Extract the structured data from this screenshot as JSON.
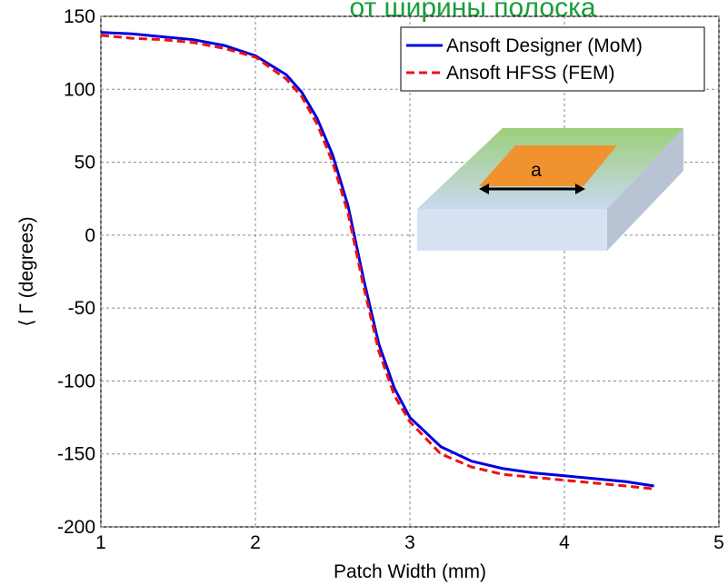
{
  "chart_data": {
    "type": "line",
    "title": "от ширины полоска",
    "xlabel": "Patch Width (mm)",
    "ylabel": "⟨ Γ (degrees)",
    "x": [
      1,
      1.2,
      1.4,
      1.6,
      1.8,
      2.0,
      2.2,
      2.3,
      2.4,
      2.5,
      2.6,
      2.7,
      2.8,
      2.9,
      3.0,
      3.2,
      3.4,
      3.6,
      3.8,
      4.0,
      4.2,
      4.4,
      4.58
    ],
    "series": [
      {
        "name": "Ansoft Designer (MoM)",
        "color": "#0000dd",
        "dash": false,
        "values": [
          139,
          138,
          136,
          134,
          130,
          123,
          110,
          98,
          80,
          55,
          20,
          -30,
          -75,
          -105,
          -125,
          -145,
          -155,
          -160,
          -163,
          -165,
          -167,
          -169,
          -172
        ]
      },
      {
        "name": "Ansoft HFSS (FEM)",
        "color": "#ee1111",
        "dash": true,
        "values": [
          137,
          135,
          134,
          132,
          128,
          122,
          107,
          95,
          76,
          50,
          15,
          -35,
          -80,
          -110,
          -128,
          -150,
          -159,
          -164,
          -166,
          -168,
          -170,
          -172,
          -174
        ]
      }
    ],
    "xlim": [
      1,
      5
    ],
    "xticks": [
      1,
      2,
      3,
      4,
      5
    ],
    "ylim": [
      -200,
      150
    ],
    "yticks": [
      -200,
      -150,
      -100,
      -50,
      0,
      50,
      100,
      150
    ],
    "grid": true,
    "legend": "top-right",
    "annotations": [
      "a"
    ]
  }
}
